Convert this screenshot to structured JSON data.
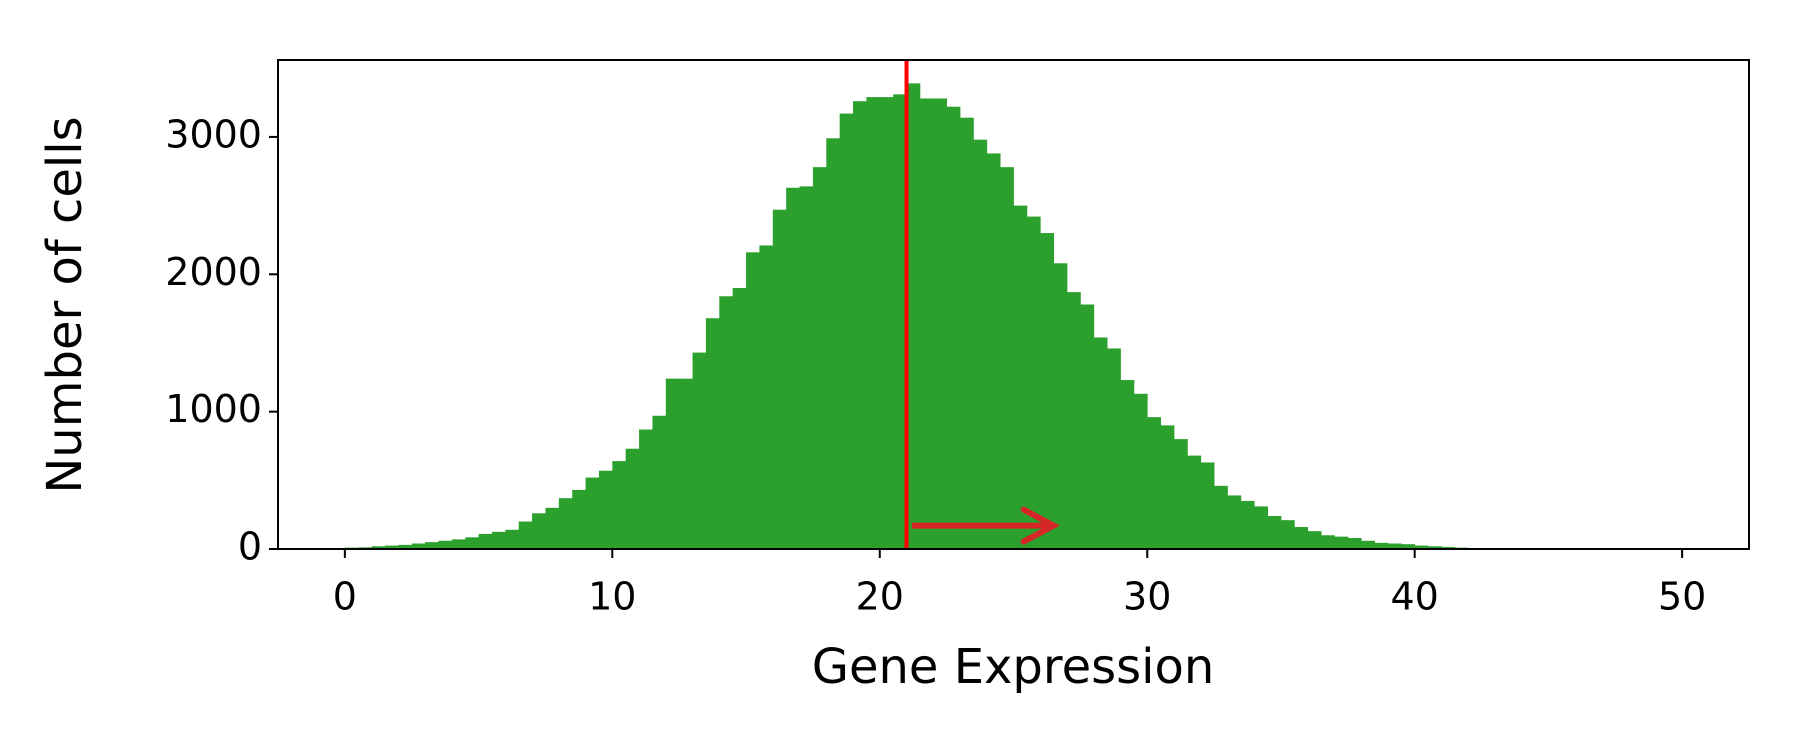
{
  "chart_data": {
    "type": "histogram",
    "x_label": "Gene Expression",
    "y_label": "Number of cells",
    "color": "#2ca02c",
    "bins": [
      0,
      0.5,
      1,
      1.5,
      2,
      2.5,
      3,
      3.5,
      4,
      4.5,
      5,
      5.5,
      6,
      6.5,
      7,
      7.5,
      8,
      8.5,
      9,
      9.5,
      10,
      10.5,
      11,
      11.5,
      12,
      12.5,
      13,
      13.5,
      14,
      14.5,
      15,
      15.5,
      16,
      16.5,
      17,
      17.5,
      18,
      18.5,
      19,
      19.5,
      20,
      20.5,
      21,
      21.5,
      22,
      22.5,
      23,
      23.5,
      24,
      24.5,
      25,
      25.5,
      26,
      26.5,
      27,
      27.5,
      28,
      28.5,
      29,
      29.5,
      30,
      30.5,
      31,
      31.5,
      32,
      32.5,
      33,
      33.5,
      34,
      34.5,
      35,
      35.5,
      36,
      36.5,
      37,
      37.5,
      38,
      38.5,
      39,
      39.5,
      40,
      40.5,
      41,
      41.5,
      42,
      42.5,
      43,
      43.5,
      44,
      44.5,
      45,
      45.5,
      46,
      46.5,
      47,
      47.5,
      48,
      48.5,
      49,
      49.5,
      50
    ],
    "counts": [
      10,
      12,
      20,
      25,
      30,
      40,
      50,
      60,
      70,
      85,
      110,
      125,
      140,
      200,
      260,
      300,
      370,
      430,
      520,
      570,
      640,
      730,
      870,
      970,
      1240,
      1240,
      1430,
      1680,
      1840,
      1900,
      2160,
      2210,
      2470,
      2630,
      2640,
      2780,
      2990,
      3170,
      3260,
      3290,
      3290,
      3310,
      3390,
      3280,
      3280,
      3220,
      3140,
      2980,
      2880,
      2780,
      2500,
      2420,
      2300,
      2080,
      1870,
      1780,
      1540,
      1460,
      1230,
      1130,
      960,
      900,
      800,
      680,
      630,
      460,
      390,
      350,
      310,
      240,
      210,
      160,
      130,
      100,
      90,
      80,
      60,
      45,
      40,
      35,
      25,
      20,
      15,
      10,
      6,
      4,
      3,
      2,
      2,
      1,
      1,
      0,
      0,
      0,
      0,
      0,
      0,
      0,
      0,
      0
    ],
    "xlim": [
      -2.5,
      52.5
    ],
    "ylim": [
      0,
      3560
    ],
    "xticks": [
      0,
      10,
      20,
      30,
      40,
      50
    ],
    "yticks": [
      0,
      1000,
      2000,
      3000
    ],
    "vline": {
      "x": 21,
      "color": "#ff0000"
    },
    "arrow": {
      "x_start": 21.2,
      "x_end": 26.5,
      "y": 170,
      "color": "#d62728"
    }
  }
}
